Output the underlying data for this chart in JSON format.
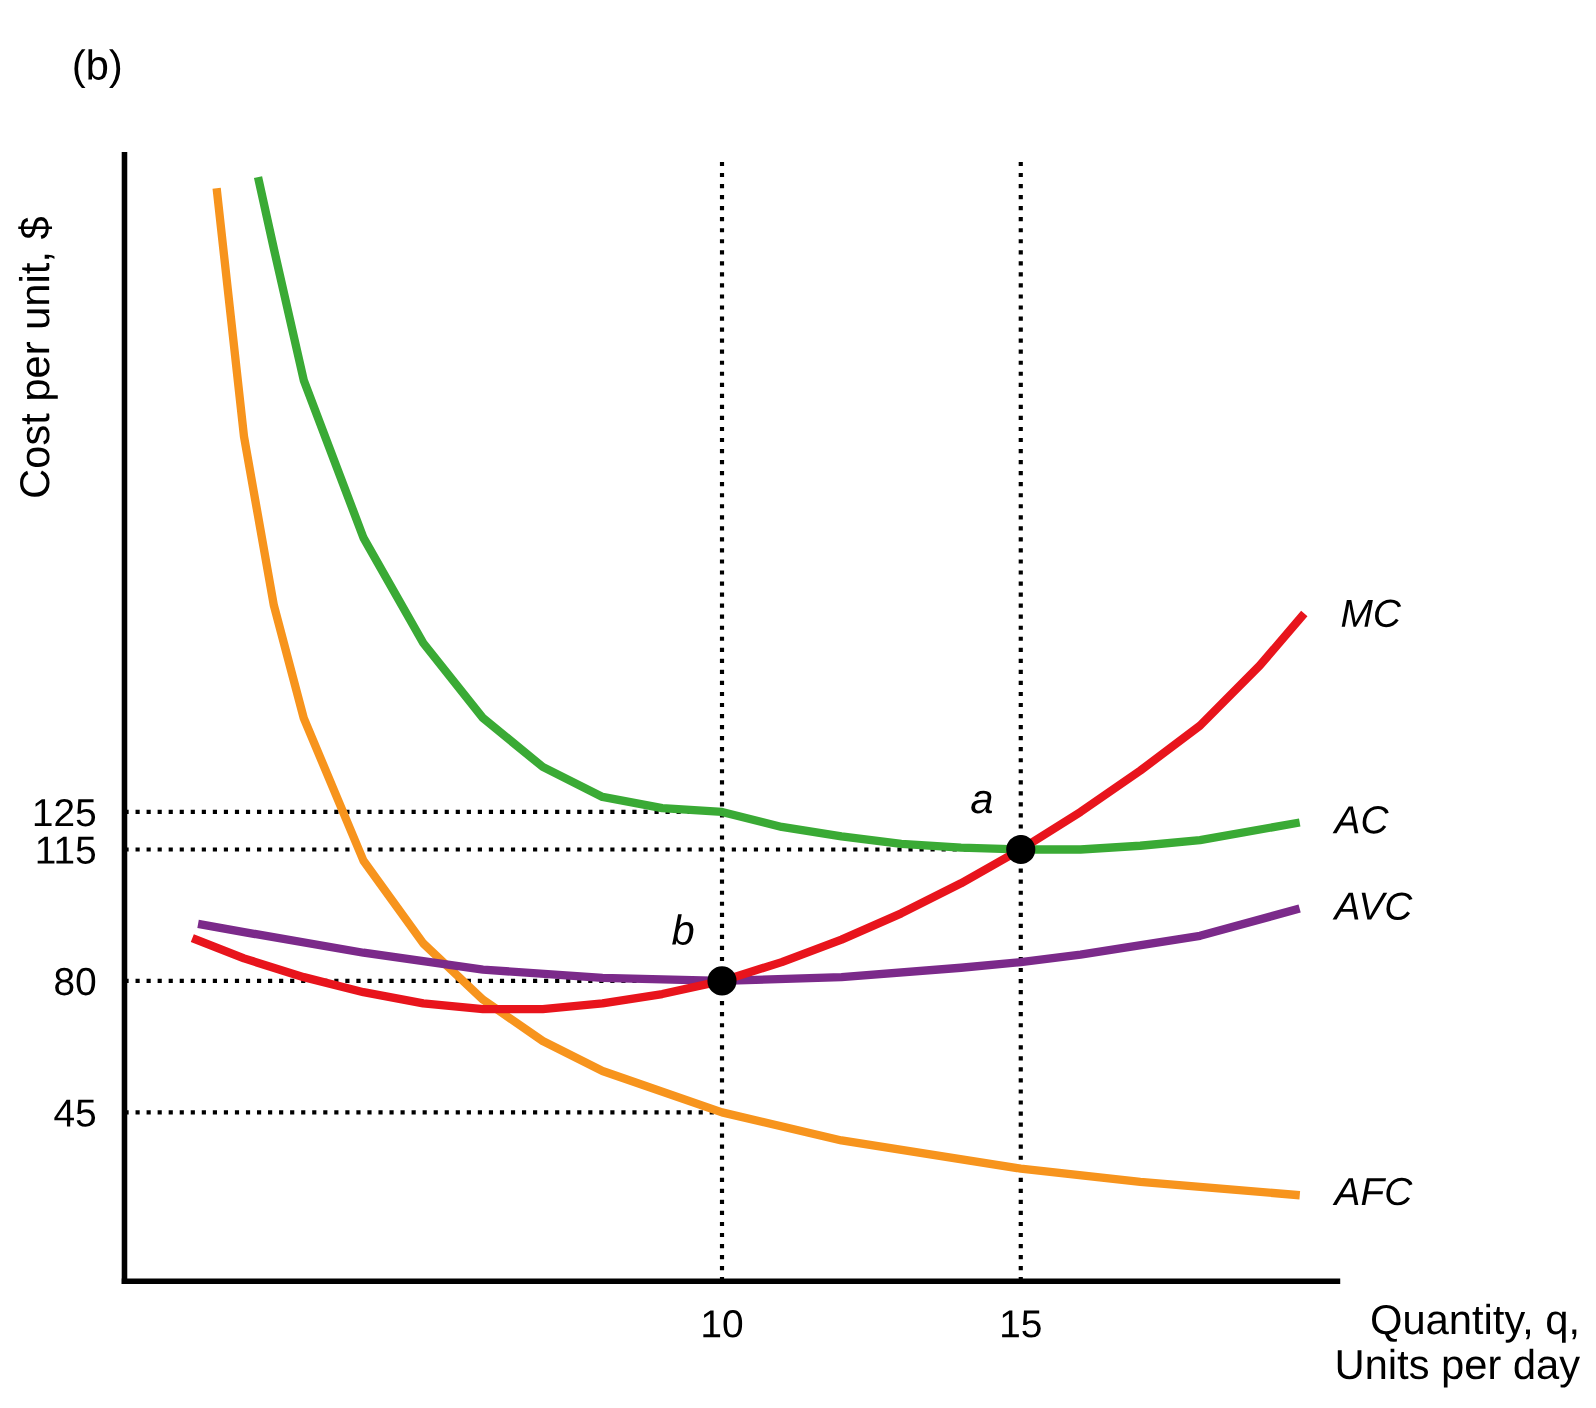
{
  "chart_data": {
    "type": "line",
    "title": "(b)",
    "ylabel": "Cost per unit, $",
    "xlabel": "Quantity, q,\nUnits per day",
    "xlim": [
      0,
      20.3
    ],
    "ylim": [
      0,
      300
    ],
    "xticks": [
      10,
      15
    ],
    "yticks": [
      45,
      80,
      115,
      125
    ],
    "grid": false,
    "legend": false,
    "ref_lines": [
      {
        "axis": "x",
        "value": 10,
        "color": "#000000",
        "line_style": "dotted"
      },
      {
        "axis": "x",
        "value": 15,
        "color": "#000000",
        "line_style": "dotted"
      }
    ],
    "series": [
      {
        "type": "line",
        "color": "#000000",
        "line_style": "dotted",
        "x": [
          0,
          10
        ],
        "values": [
          125,
          125
        ]
      },
      {
        "type": "line",
        "color": "#000000",
        "line_style": "dotted",
        "x": [
          0,
          15
        ],
        "values": [
          115,
          115
        ]
      },
      {
        "type": "line",
        "color": "#000000",
        "line_style": "dotted",
        "x": [
          0,
          10
        ],
        "values": [
          80,
          80
        ]
      },
      {
        "type": "line",
        "color": "#000000",
        "line_style": "dotted",
        "x": [
          0,
          10
        ],
        "values": [
          45,
          45
        ]
      },
      {
        "name": "AFC",
        "color": "#f7941d",
        "line_style": "solid",
        "x": [
          1.55,
          2,
          2.5,
          3,
          4,
          5,
          6,
          7,
          8,
          10,
          12,
          15,
          17,
          19.6
        ],
        "values": [
          290,
          225,
          180,
          150,
          112,
          90,
          75,
          64,
          56,
          45,
          37.5,
          30,
          26.5,
          23
        ]
      },
      {
        "name": "AC",
        "color": "#3aaa35",
        "line_style": "solid",
        "x": [
          2.25,
          2.5,
          3,
          4,
          5,
          6,
          7,
          8,
          9,
          10,
          11,
          12,
          13,
          14,
          15,
          16,
          17,
          18,
          19.6
        ],
        "values": [
          293,
          275,
          240,
          198,
          170,
          150,
          137,
          129,
          126,
          125,
          121,
          118.5,
          116.5,
          115.5,
          115,
          115,
          116,
          117.5,
          122
        ]
      },
      {
        "name": "AVC",
        "color": "#7b2a8a",
        "line_style": "solid",
        "x": [
          1.3,
          2,
          4,
          6,
          8,
          10,
          12,
          14,
          15,
          16,
          18,
          19.6
        ],
        "values": [
          95,
          93,
          87.5,
          83,
          80.8,
          80,
          81,
          83.5,
          85,
          87,
          92,
          99
        ]
      },
      {
        "name": "MC",
        "color": "#e8141c",
        "line_style": "solid",
        "x": [
          1.2,
          2,
          3,
          4,
          5,
          6,
          7,
          8,
          9,
          10,
          11,
          12,
          13,
          14,
          15,
          16,
          17,
          18,
          19,
          19.7
        ],
        "values": [
          91,
          86,
          81,
          77,
          74,
          72.5,
          72.5,
          74,
          76.5,
          80,
          85,
          91,
          98,
          106,
          115,
          125,
          136,
          148,
          164,
          177
        ]
      },
      {
        "type": "scatter",
        "color": "#000000",
        "marker": "circle",
        "x": [
          15,
          10
        ],
        "values": [
          115,
          80
        ]
      }
    ],
    "annotations": [
      {
        "text": "a",
        "x": 15,
        "y": 115
      },
      {
        "text": "b",
        "x": 10,
        "y": 80
      }
    ]
  }
}
